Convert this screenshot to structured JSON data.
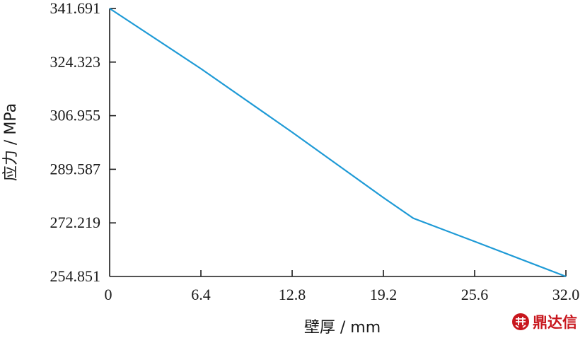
{
  "chart_data": {
    "type": "line",
    "xlabel": "壁厚 / mm",
    "ylabel": "应力 / MPa",
    "xlim": [
      0,
      32
    ],
    "ylim": [
      254.851,
      341.691
    ],
    "x_ticks": [
      "0",
      "6.4",
      "12.8",
      "19.2",
      "25.6",
      "32.0"
    ],
    "y_ticks": [
      "341.691",
      "324.323",
      "306.955",
      "289.587",
      "272.219",
      "254.851"
    ],
    "grid": false,
    "series": [
      {
        "color": "#1e9ad6",
        "x": [
          0,
          6.4,
          12.8,
          19.2,
          21.3,
          25.6,
          32.0
        ],
        "y": [
          341.691,
          322.2,
          301.6,
          280.4,
          273.7,
          266.2,
          254.851
        ]
      }
    ]
  },
  "watermark": {
    "text": "鼎达信",
    "color": "#c8161d"
  }
}
